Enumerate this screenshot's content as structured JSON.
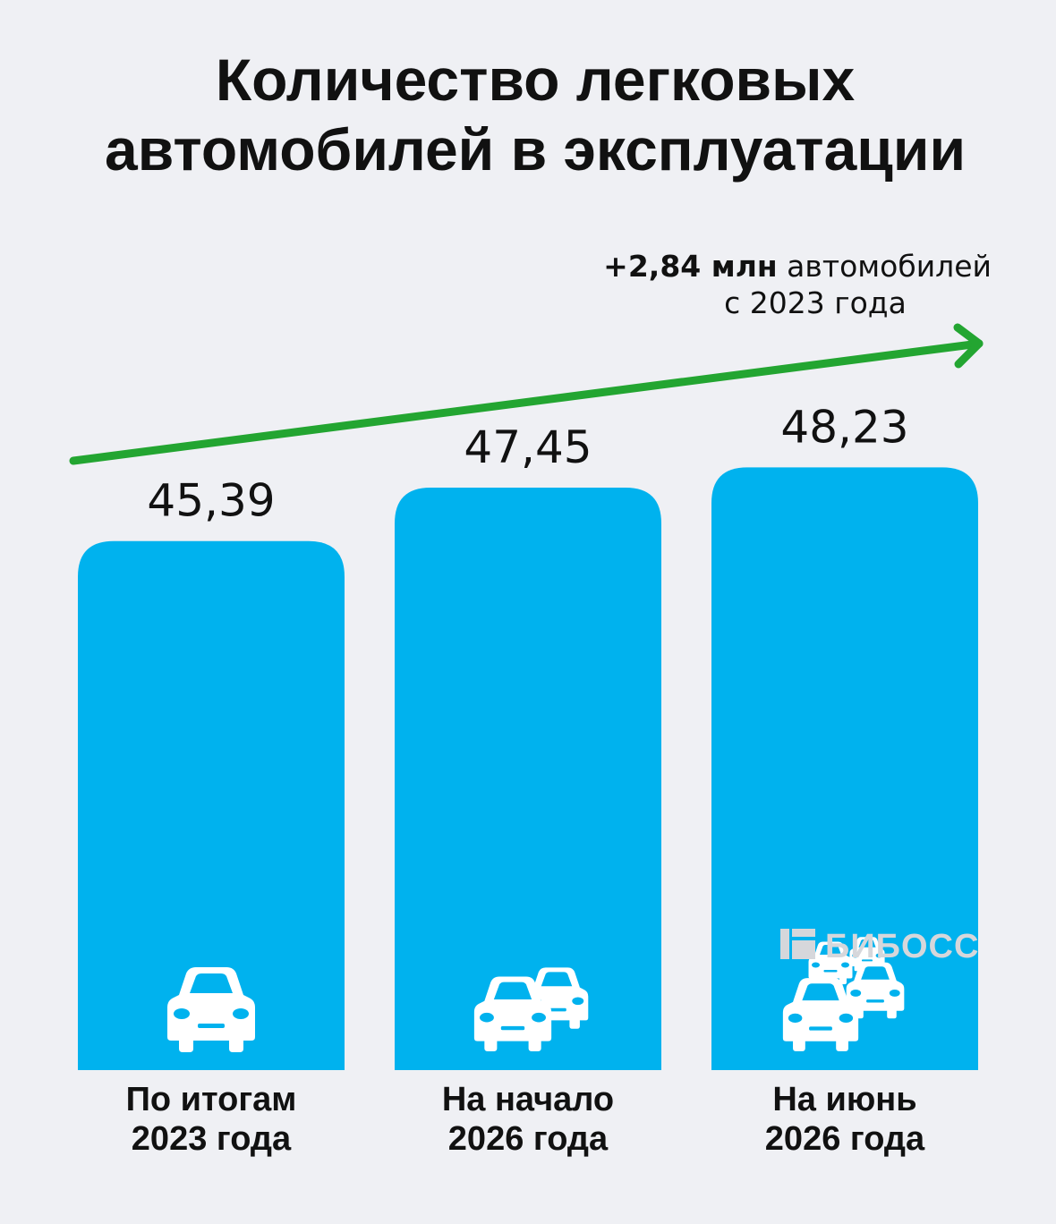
{
  "chart_data": {
    "type": "bar",
    "title": [
      "Количество легковых",
      "автомобилей в эксплуатации"
    ],
    "categories": [
      [
        "По итогам",
        "2023 года"
      ],
      [
        "На начало",
        "2026 года"
      ],
      [
        "На июнь",
        "2026 года"
      ]
    ],
    "values": [
      45.39,
      47.45,
      48.23
    ],
    "value_labels": [
      "45,39",
      "47,45",
      "48,23"
    ],
    "icons": [
      "car-icon",
      "two-cars-icon",
      "four-cars-icon"
    ],
    "annotation": {
      "bold": "+2,84 млн",
      "rest": " автомобилей",
      "line2": "с 2023 года"
    },
    "colors": {
      "bar": "#00b2ee",
      "arrow": "#23a531",
      "background": "#eff0f4",
      "text": "#111111"
    }
  },
  "watermark": {
    "text": "БИБОСС"
  }
}
